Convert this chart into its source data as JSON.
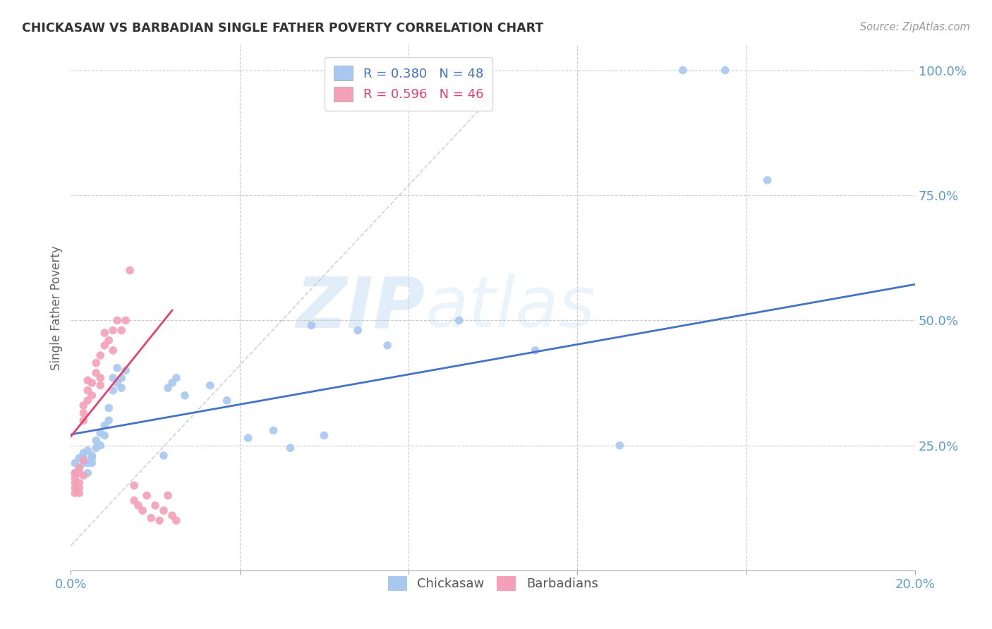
{
  "title": "CHICKASAW VS BARBADIAN SINGLE FATHER POVERTY CORRELATION CHART",
  "source": "Source: ZipAtlas.com",
  "ylabel_label": "Single Father Poverty",
  "x_min": 0.0,
  "x_max": 0.2,
  "y_min": 0.0,
  "y_max": 1.05,
  "y_ticks": [
    0.25,
    0.5,
    0.75,
    1.0
  ],
  "y_tick_labels": [
    "25.0%",
    "50.0%",
    "75.0%",
    "100.0%"
  ],
  "chickasaw_color": "#A8C8F0",
  "barbadian_color": "#F4A0B8",
  "chickasaw_trend_color": "#4472C4",
  "barbadian_trend_color": "#E8406A",
  "legend_r_chickasaw": "R = 0.380",
  "legend_n_chickasaw": "N = 48",
  "legend_r_barbadian": "R = 0.596",
  "legend_n_barbadian": "N = 46",
  "watermark": "ZIPatlas",
  "background_color": "#FFFFFF",
  "grid_color": "#CCCCCC",
  "axis_color": "#5B9BD5",
  "chickasaw_trend": [
    0.0,
    0.272,
    0.2,
    0.572
  ],
  "barbadian_trend": [
    0.0,
    0.268,
    0.024,
    0.52
  ],
  "ref_line": [
    0.0,
    0.05,
    0.1,
    0.95
  ],
  "chickasaw_x": [
    0.001,
    0.001,
    0.002,
    0.002,
    0.003,
    0.003,
    0.003,
    0.004,
    0.004,
    0.004,
    0.005,
    0.005,
    0.005,
    0.006,
    0.006,
    0.007,
    0.007,
    0.008,
    0.008,
    0.009,
    0.009,
    0.01,
    0.01,
    0.011,
    0.011,
    0.012,
    0.012,
    0.013,
    0.022,
    0.023,
    0.024,
    0.025,
    0.027,
    0.033,
    0.037,
    0.042,
    0.048,
    0.052,
    0.057,
    0.06,
    0.068,
    0.075,
    0.092,
    0.11,
    0.13,
    0.145,
    0.155,
    0.165
  ],
  "chickasaw_y": [
    0.195,
    0.215,
    0.205,
    0.225,
    0.215,
    0.225,
    0.235,
    0.195,
    0.215,
    0.24,
    0.215,
    0.225,
    0.23,
    0.245,
    0.26,
    0.25,
    0.275,
    0.27,
    0.29,
    0.3,
    0.325,
    0.36,
    0.385,
    0.375,
    0.405,
    0.365,
    0.385,
    0.4,
    0.23,
    0.365,
    0.375,
    0.385,
    0.35,
    0.37,
    0.34,
    0.265,
    0.28,
    0.245,
    0.49,
    0.27,
    0.48,
    0.45,
    0.5,
    0.44,
    0.25,
    1.0,
    1.0,
    0.78
  ],
  "barbadian_x": [
    0.001,
    0.001,
    0.001,
    0.001,
    0.001,
    0.002,
    0.002,
    0.002,
    0.002,
    0.002,
    0.003,
    0.003,
    0.003,
    0.003,
    0.003,
    0.004,
    0.004,
    0.004,
    0.005,
    0.005,
    0.006,
    0.006,
    0.007,
    0.007,
    0.007,
    0.008,
    0.008,
    0.009,
    0.01,
    0.01,
    0.011,
    0.012,
    0.013,
    0.014,
    0.015,
    0.015,
    0.016,
    0.017,
    0.018,
    0.019,
    0.02,
    0.021,
    0.022,
    0.023,
    0.024,
    0.025
  ],
  "barbadian_y": [
    0.195,
    0.185,
    0.175,
    0.165,
    0.155,
    0.195,
    0.205,
    0.175,
    0.165,
    0.155,
    0.19,
    0.22,
    0.3,
    0.315,
    0.33,
    0.34,
    0.36,
    0.38,
    0.35,
    0.375,
    0.395,
    0.415,
    0.37,
    0.385,
    0.43,
    0.45,
    0.475,
    0.46,
    0.44,
    0.48,
    0.5,
    0.48,
    0.5,
    0.6,
    0.14,
    0.17,
    0.13,
    0.12,
    0.15,
    0.105,
    0.13,
    0.1,
    0.12,
    0.15,
    0.11,
    0.1
  ]
}
